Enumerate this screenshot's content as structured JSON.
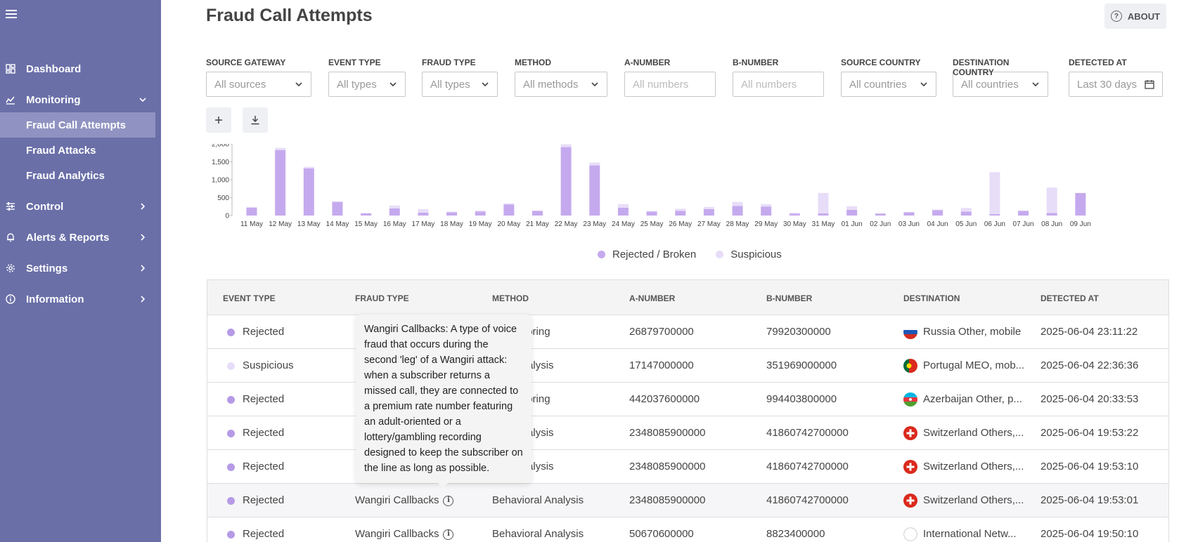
{
  "page_title": "Fraud Call Attempts",
  "about_label": "ABOUT",
  "sidebar": {
    "items": [
      {
        "label": "Dashboard",
        "icon": "dashboard-icon"
      },
      {
        "label": "Monitoring",
        "icon": "monitoring-icon"
      },
      {
        "label": "Control",
        "icon": "sliders-icon"
      },
      {
        "label": "Alerts & Reports",
        "icon": "bell-icon"
      },
      {
        "label": "Settings",
        "icon": "gear-icon"
      },
      {
        "label": "Information",
        "icon": "info-icon"
      }
    ],
    "sub_items": [
      {
        "label": "Fraud Call Attempts",
        "active": true
      },
      {
        "label": "Fraud Attacks"
      },
      {
        "label": "Fraud Analytics"
      }
    ]
  },
  "filters": [
    {
      "label": "SOURCE GATEWAY",
      "placeholder": "All sources"
    },
    {
      "label": "EVENT TYPE",
      "placeholder": "All types"
    },
    {
      "label": "FRAUD TYPE",
      "placeholder": "All types"
    },
    {
      "label": "METHOD",
      "placeholder": "All methods"
    },
    {
      "label": "A-NUMBER",
      "placeholder": "All numbers"
    },
    {
      "label": "B-NUMBER",
      "placeholder": "All numbers"
    },
    {
      "label": "SOURCE COUNTRY",
      "placeholder": "All countries"
    },
    {
      "label": "DESTINATION COUNTRY",
      "placeholder": "All countries"
    },
    {
      "label": "DETECTED AT",
      "placeholder": "Last 30 days"
    }
  ],
  "chart_data": {
    "type": "bar",
    "stacked": true,
    "categories": [
      "11 May",
      "12 May",
      "13 May",
      "14 May",
      "15 May",
      "16 May",
      "17 May",
      "18 May",
      "19 May",
      "20 May",
      "21 May",
      "22 May",
      "23 May",
      "24 May",
      "25 May",
      "26 May",
      "27 May",
      "28 May",
      "29 May",
      "30 May",
      "31 May",
      "01 Jun",
      "02 Jun",
      "03 Jun",
      "04 Jun",
      "05 Jun",
      "06 Jun",
      "07 Jun",
      "08 Jun",
      "09 Jun"
    ],
    "series": [
      {
        "name": "Rejected / Broken",
        "color": "#c5a9ee",
        "values": [
          220,
          1830,
          1320,
          380,
          60,
          200,
          80,
          90,
          110,
          310,
          130,
          1910,
          1400,
          220,
          110,
          130,
          180,
          270,
          250,
          50,
          60,
          160,
          55,
          90,
          150,
          110,
          40,
          130,
          70,
          630
        ]
      },
      {
        "name": "Suspicious",
        "color": "#e8ddf8",
        "values": [
          20,
          60,
          40,
          20,
          10,
          80,
          100,
          20,
          30,
          30,
          10,
          80,
          80,
          100,
          20,
          60,
          60,
          110,
          70,
          30,
          570,
          100,
          10,
          10,
          20,
          100,
          1170,
          10,
          710,
          0
        ]
      }
    ],
    "ylim": [
      0,
      2000
    ],
    "yticks": [
      "0",
      "500",
      "1,000",
      "1,500",
      "2,000"
    ],
    "grid": false,
    "legend": "bottom"
  },
  "table": {
    "columns": [
      "EVENT TYPE",
      "FRAUD TYPE",
      "METHOD",
      "A-NUMBER",
      "B-NUMBER",
      "DESTINATION",
      "DETECTED AT"
    ],
    "rows": [
      {
        "event": "Rejected",
        "fraud": "",
        "method": "e Monitoring",
        "a": "26879700000",
        "b": "79920300000",
        "flag": "russia-flag-icon",
        "dest": "Russia Other, mobile",
        "at": "2025-06-04 23:11:22",
        "dot": "#b69ae6"
      },
      {
        "event": "Suspicious",
        "fraud": "",
        "method": "ioral Analysis",
        "a": "17147000000",
        "b": "351969000000",
        "flag": "portugal-flag-icon",
        "dest": "Portugal MEO, mob...",
        "at": "2025-06-04 22:36:36",
        "dot": "#e8ddf8"
      },
      {
        "event": "Rejected",
        "fraud": "",
        "method": "e Monitoring",
        "a": "442037600000",
        "b": "994403800000",
        "flag": "azerbaijan-flag-icon",
        "dest": "Azerbaijan Other, p...",
        "at": "2025-06-04 20:33:53",
        "dot": "#b69ae6"
      },
      {
        "event": "Rejected",
        "fraud": "",
        "method": "ioral Analysis",
        "a": "2348085900000",
        "b": "41860742700000",
        "flag": "switzerland-flag-icon",
        "dest": "Switzerland Others,...",
        "at": "2025-06-04 19:53:22",
        "dot": "#b69ae6"
      },
      {
        "event": "Rejected",
        "fraud": "",
        "method": "ioral Analysis",
        "a": "2348085900000",
        "b": "41860742700000",
        "flag": "switzerland-flag-icon",
        "dest": "Switzerland Others,...",
        "at": "2025-06-04 19:53:10",
        "dot": "#b69ae6"
      },
      {
        "event": "Rejected",
        "fraud": "Wangiri Callbacks",
        "method": "Behavioral Analysis",
        "a": "2348085900000",
        "b": "41860742700000",
        "flag": "switzerland-flag-icon",
        "dest": "Switzerland Others,...",
        "at": "2025-06-04 19:53:01",
        "dot": "#b69ae6"
      },
      {
        "event": "Rejected",
        "fraud": "Wangiri Callbacks",
        "method": "Behavioral Analysis",
        "a": "50670600000",
        "b": "8823400000",
        "flag": "globe-icon",
        "dest": "International Netw...",
        "at": "2025-06-04 19:50:10",
        "dot": "#b69ae6"
      }
    ]
  },
  "tooltip": {
    "text": "Wangiri Callbacks: A type of voice fraud that occurs during the second 'leg' of a Wangiri attack: when a subscriber returns a missed call, they are connected to a premium rate number featuring an adult-oriented or a lottery/gambling recording designed to keep the subscriber on the line as long as possible."
  }
}
